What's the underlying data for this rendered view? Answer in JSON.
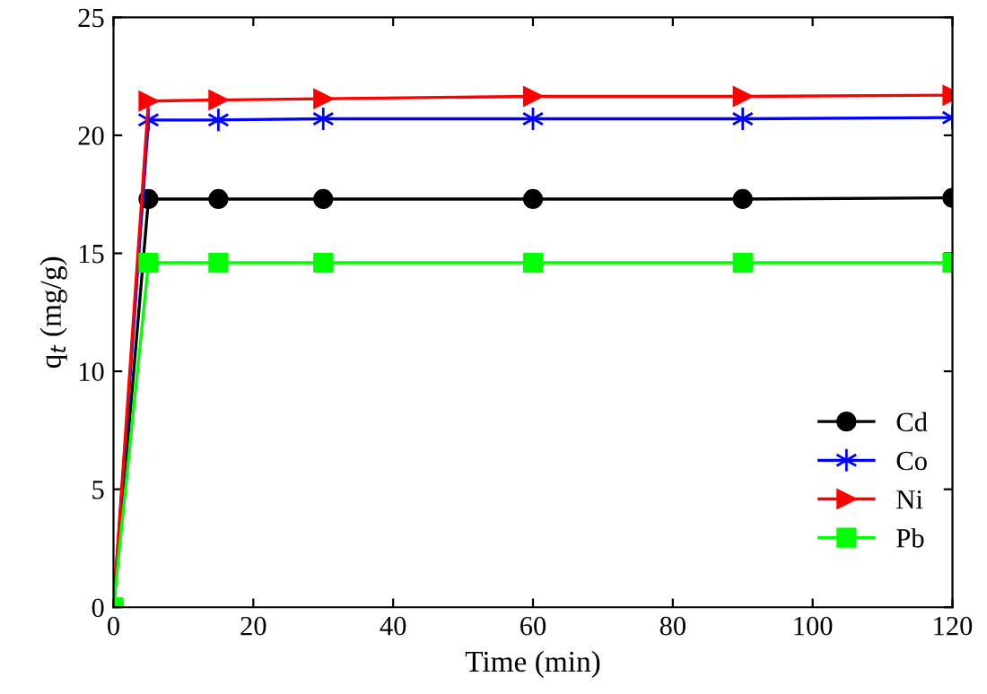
{
  "chart_data": {
    "type": "line",
    "xlabel": "Time (min)",
    "ylabel": "q$_{t}$ (mg/g)",
    "x": [
      0,
      5,
      15,
      30,
      60,
      90,
      120
    ],
    "series": [
      {
        "name": "Cd",
        "color": "#000000",
        "marker": "circle",
        "values": [
          0,
          17.3,
          17.3,
          17.3,
          17.3,
          17.3,
          17.35
        ]
      },
      {
        "name": "Co",
        "color": "#0000ff",
        "marker": "cross",
        "values": [
          0,
          20.65,
          20.65,
          20.7,
          20.7,
          20.7,
          20.75
        ]
      },
      {
        "name": "Ni",
        "color": "#ff0000",
        "marker": "triangle",
        "values": [
          0,
          21.45,
          21.5,
          21.55,
          21.65,
          21.65,
          21.7
        ]
      },
      {
        "name": "Pb",
        "color": "#00ff00",
        "marker": "square",
        "values": [
          0,
          14.6,
          14.6,
          14.6,
          14.6,
          14.6,
          14.6
        ]
      }
    ],
    "xlim": [
      0,
      120
    ],
    "xticks": [
      0,
      20,
      40,
      60,
      80,
      100,
      120
    ],
    "ylim": [
      0,
      25
    ],
    "yticks": [
      0,
      5,
      10,
      15,
      20,
      25
    ],
    "grid": false,
    "legend": "bottom right"
  }
}
